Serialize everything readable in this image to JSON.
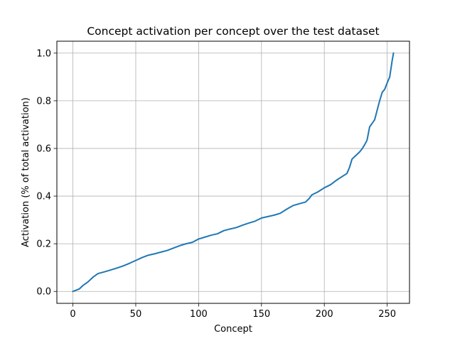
{
  "chart_data": {
    "type": "line",
    "title": "Concept activation per concept over the test dataset",
    "xlabel": "Concept",
    "ylabel": "Activation (% of total activation)",
    "xlim": [
      -12.75,
      267.75
    ],
    "ylim": [
      -0.05,
      1.05
    ],
    "xticks": [
      0,
      50,
      100,
      150,
      200,
      250
    ],
    "xtick_labels": [
      "0",
      "50",
      "100",
      "150",
      "200",
      "250"
    ],
    "yticks": [
      0.0,
      0.2,
      0.4,
      0.6,
      0.8,
      1.0
    ],
    "ytick_labels": [
      "0.0",
      "0.2",
      "0.4",
      "0.6",
      "0.8",
      "1.0"
    ],
    "grid": true,
    "legend": "none",
    "series_color": "#1f77b4",
    "series": [
      {
        "x": [
          0,
          5,
          8,
          12,
          16,
          20,
          25,
          30,
          35,
          40,
          45,
          50,
          55,
          60,
          65,
          70,
          75,
          80,
          85,
          90,
          95,
          100,
          105,
          110,
          115,
          120,
          125,
          130,
          135,
          140,
          145,
          150,
          155,
          160,
          165,
          170,
          175,
          180,
          185,
          188,
          190,
          195,
          200,
          205,
          210,
          215,
          218,
          220,
          222,
          225,
          228,
          230,
          232,
          234,
          236,
          238,
          240,
          242,
          244,
          246,
          248,
          250,
          252,
          254,
          255
        ],
        "y": [
          0.0,
          0.01,
          0.025,
          0.04,
          0.06,
          0.075,
          0.082,
          0.09,
          0.098,
          0.107,
          0.118,
          0.13,
          0.142,
          0.152,
          0.158,
          0.165,
          0.172,
          0.182,
          0.192,
          0.2,
          0.206,
          0.22,
          0.228,
          0.236,
          0.242,
          0.255,
          0.262,
          0.268,
          0.278,
          0.287,
          0.295,
          0.308,
          0.314,
          0.32,
          0.328,
          0.345,
          0.36,
          0.368,
          0.375,
          0.39,
          0.405,
          0.418,
          0.435,
          0.448,
          0.468,
          0.485,
          0.495,
          0.52,
          0.555,
          0.57,
          0.585,
          0.598,
          0.615,
          0.635,
          0.69,
          0.705,
          0.72,
          0.76,
          0.8,
          0.835,
          0.848,
          0.875,
          0.9,
          0.97,
          1.0
        ]
      }
    ]
  }
}
